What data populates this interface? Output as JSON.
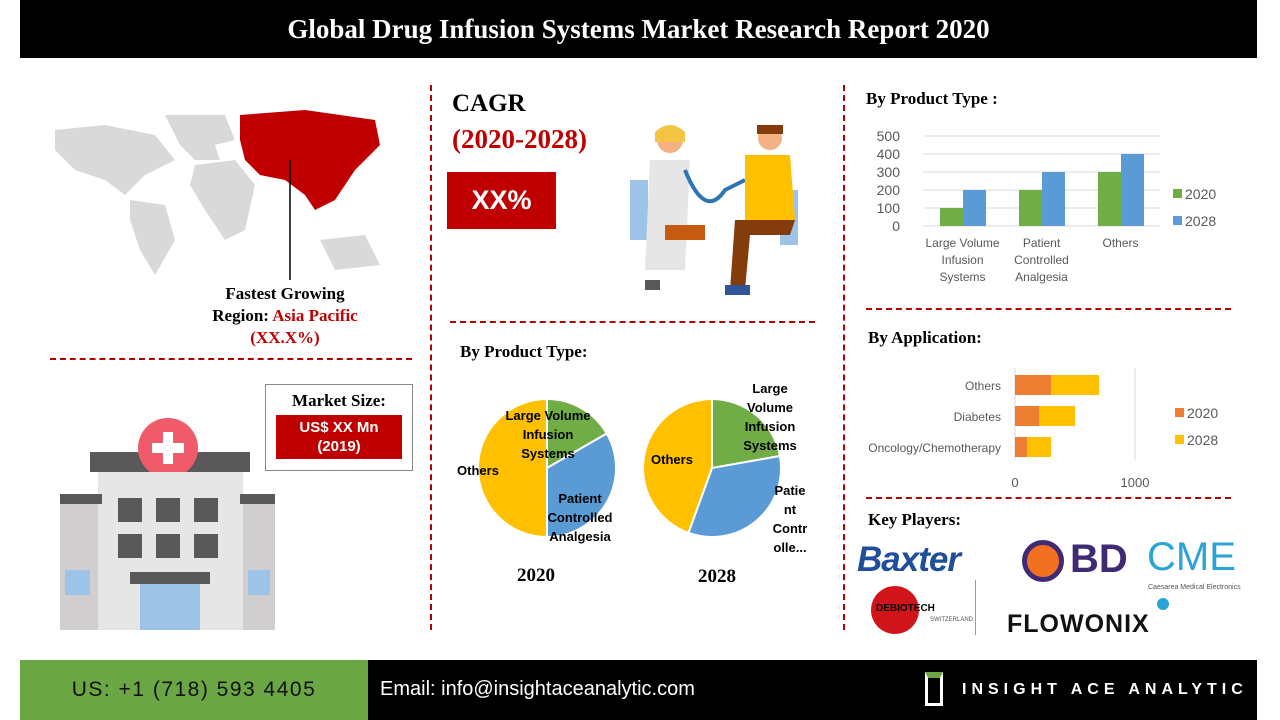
{
  "header": {
    "title": "Global Drug Infusion Systems Market Research Report 2020"
  },
  "region": {
    "line1": "Fastest Growing",
    "prefix": "Region: ",
    "name": "Asia Pacific",
    "value": "(XX.X%)"
  },
  "market": {
    "label": "Market Size:",
    "value_line1": "US$ XX Mn",
    "value_line2": "(2019)"
  },
  "cagr": {
    "title": "CAGR",
    "period": "(2020-2028)",
    "value": "XX%"
  },
  "colors": {
    "red": "#c00000",
    "green": "#70ad47",
    "blue": "#5b9bd5",
    "orange": "#ed7d31",
    "yellow": "#ffc000"
  },
  "chart_data": [
    {
      "type": "pie",
      "title": "By Product Type:",
      "subtitle": "2020",
      "categories": [
        "Large Volume Infusion Systems",
        "Patient Controlled Analgesia",
        "Others"
      ],
      "labels": [
        "Large Volume Infusion Systems",
        "Patient Controlled Analgesia",
        "Others"
      ],
      "values": [
        100,
        200,
        300
      ]
    },
    {
      "type": "pie",
      "title": "By Product Type:",
      "subtitle": "2028",
      "categories": [
        "Large Volume Infusion Systems",
        "Patient Controlled Analgesia",
        "Others"
      ],
      "labels": [
        "Large Volume Infusion Systems",
        "Patie nt Contr olle...",
        "Others"
      ],
      "values": [
        200,
        300,
        400
      ]
    },
    {
      "type": "bar",
      "title": "By Product Type :",
      "categories": [
        "Large Volume Infusion Systems",
        "Patient Controlled Analgesia",
        "Others"
      ],
      "series": [
        {
          "name": "2020",
          "values": [
            100,
            200,
            300
          ]
        },
        {
          "name": "2028",
          "values": [
            200,
            300,
            400
          ]
        }
      ],
      "ylim": [
        0,
        500
      ],
      "yticks": [
        "0",
        "100",
        "200",
        "300",
        "400",
        "500"
      ],
      "legend": "right",
      "grid": true
    },
    {
      "type": "bar",
      "orientation": "horizontal",
      "stacked": true,
      "title": "By Application:",
      "categories": [
        "Oncology/Chemotherapy",
        "Diabetes",
        "Others"
      ],
      "series": [
        {
          "name": "2020",
          "values": [
            100,
            200,
            300
          ]
        },
        {
          "name": "2028",
          "values": [
            200,
            300,
            400
          ]
        }
      ],
      "xticks": [
        "0",
        "1000"
      ],
      "legend": "right"
    }
  ],
  "key_players": {
    "title": "Key Players:",
    "logos": [
      "Baxter",
      "BD",
      "CME",
      "Caesarea Medical Electronics",
      "DEBIOTECH",
      "SWITZERLAND",
      "FLOWONIX"
    ]
  },
  "footer": {
    "phone": "US: +1 (718) 593 4405",
    "email": "Email: info@insightaceanalytic.com",
    "brand": "INSIGHT ACE ANALYTIC"
  }
}
